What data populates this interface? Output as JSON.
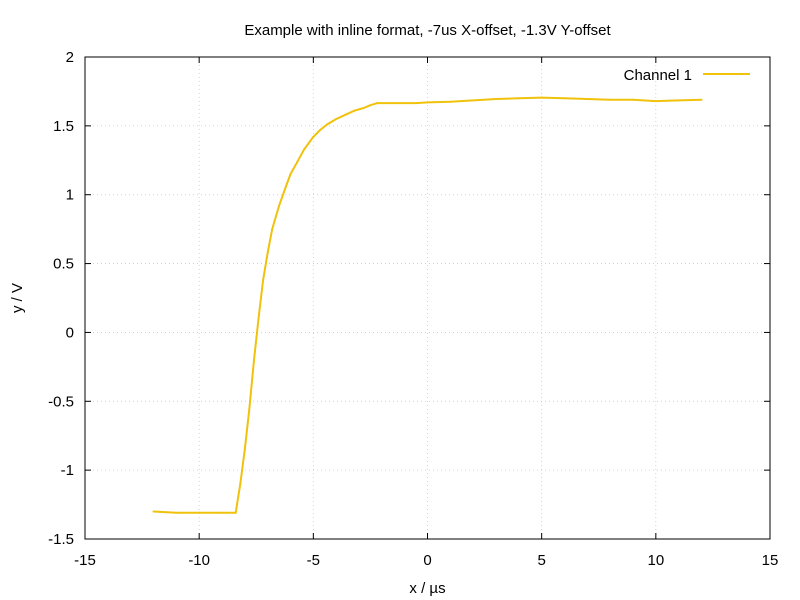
{
  "chart_data": {
    "type": "line",
    "title": "Example with inline format, -7us X-offset, -1.3V Y-offset",
    "xlabel": "x / µs",
    "ylabel": "y / V",
    "xlim": [
      -15,
      15
    ],
    "ylim": [
      -1.5,
      2
    ],
    "xticks": [
      -15,
      -10,
      -5,
      0,
      5,
      10,
      15
    ],
    "xtick_labels": [
      "-15",
      "-10",
      "-5",
      "0",
      "5",
      "10",
      "15"
    ],
    "yticks": [
      -1.5,
      -1,
      -0.5,
      0,
      0.5,
      1,
      1.5,
      2
    ],
    "ytick_labels": [
      "-1.5",
      "-1",
      "-0.5",
      "0",
      "0.5",
      "1",
      "1.5",
      "2"
    ],
    "grid": true,
    "legend_position": "top-right",
    "series": [
      {
        "name": "Channel 1",
        "color": "#f0c20c",
        "x": [
          -12.0,
          -11.0,
          -10.0,
          -9.0,
          -8.4,
          -8.2,
          -8.0,
          -7.8,
          -7.6,
          -7.4,
          -7.2,
          -7.0,
          -6.8,
          -6.5,
          -6.2,
          -6.0,
          -5.7,
          -5.4,
          -5.0,
          -4.7,
          -4.4,
          -4.0,
          -3.6,
          -3.2,
          -2.8,
          -2.5,
          -2.2,
          -1.5,
          -0.5,
          0.0,
          1.0,
          2.0,
          3.0,
          4.0,
          5.0,
          6.0,
          7.0,
          8.0,
          9.0,
          10.0,
          11.0,
          12.0
        ],
        "y": [
          -1.3,
          -1.31,
          -1.31,
          -1.31,
          -1.31,
          -1.1,
          -0.85,
          -0.55,
          -0.2,
          0.1,
          0.38,
          0.58,
          0.75,
          0.92,
          1.06,
          1.15,
          1.24,
          1.33,
          1.42,
          1.47,
          1.51,
          1.55,
          1.58,
          1.61,
          1.63,
          1.65,
          1.665,
          1.665,
          1.665,
          1.67,
          1.675,
          1.685,
          1.695,
          1.7,
          1.705,
          1.7,
          1.695,
          1.69,
          1.69,
          1.68,
          1.685,
          1.69
        ]
      }
    ]
  }
}
